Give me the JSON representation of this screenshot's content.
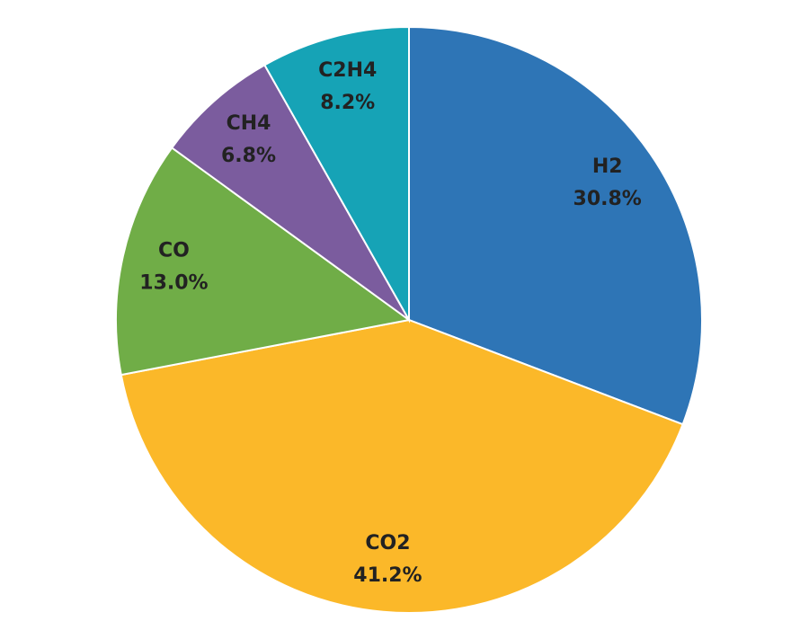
{
  "chart_data": {
    "type": "pie",
    "categories": [
      "H2",
      "CO2",
      "CO",
      "CH4",
      "C2H4"
    ],
    "values": [
      30.8,
      41.2,
      13.0,
      6.8,
      8.2
    ],
    "value_labels": [
      "30.8%",
      "41.2%",
      "13.0%",
      "6.8%",
      "8.2%"
    ],
    "colors": [
      "#2e75b6",
      "#fbb829",
      "#70ad47",
      "#7b5c9e",
      "#16a3b6"
    ]
  }
}
